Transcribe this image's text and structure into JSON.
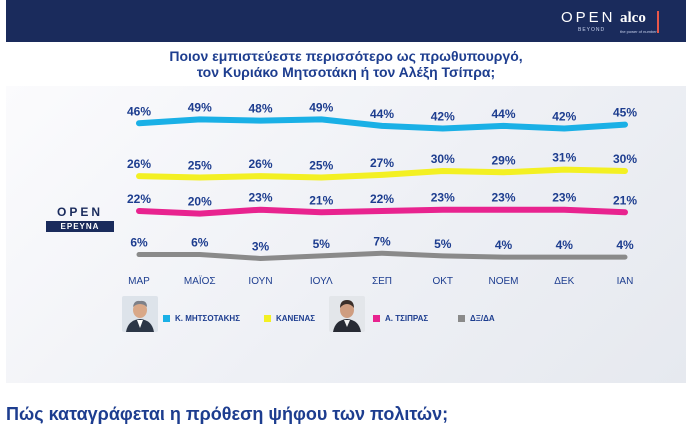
{
  "brand": {
    "open_logo": "OPEN",
    "open_beyond": "BEYOND",
    "alco_logo": "alco",
    "alco_tagline": "the power of numbers",
    "open_ereuna_top": "OPEN",
    "open_ereuna_bottom": "ΕΡΕΥΝΑ",
    "navy": "#1a2b5c",
    "text_blue": "#1d3d8f"
  },
  "page": {
    "subtitle": "Πώς καταγράφεται η πρόθεση ψήφου των πολιτών;"
  },
  "chart_data": {
    "type": "line",
    "title": "Ποιον εμπιστεύεστε περισσότερο ως πρωθυπουργό,",
    "title_line2": "τον Κυριάκο Μητσοτάκη ή τον Αλέξη Τσίπρα;",
    "categories": [
      "ΜΑΡ",
      "ΜΑΪΟΣ",
      "ΙΟΥΝ",
      "ΙΟΥΛ",
      "ΣΕΠ",
      "ΟΚΤ",
      "ΝΟΕΜ",
      "ΔΕΚ",
      "ΙΑΝ"
    ],
    "unit": "%",
    "series": [
      {
        "name": "Κ. ΜΗΤΣΟΤΑΚΗΣ",
        "color": "#1ab0e6",
        "values": [
          46,
          49,
          48,
          49,
          44,
          42,
          44,
          42,
          45
        ]
      },
      {
        "name": "ΚΑΝΕΝΑΣ",
        "color": "#f3f023",
        "values": [
          26,
          25,
          26,
          25,
          27,
          30,
          29,
          31,
          30
        ]
      },
      {
        "name": "Α. ΤΣΙΠΡΑΣ",
        "color": "#e8238f",
        "values": [
          22,
          20,
          23,
          21,
          22,
          23,
          23,
          23,
          21
        ]
      },
      {
        "name": "ΔΞ/ΔΑ",
        "color": "#8a8a8a",
        "values": [
          6,
          6,
          3,
          5,
          7,
          5,
          4,
          4,
          4
        ]
      }
    ],
    "grid": false,
    "legend_position": "bottom"
  }
}
